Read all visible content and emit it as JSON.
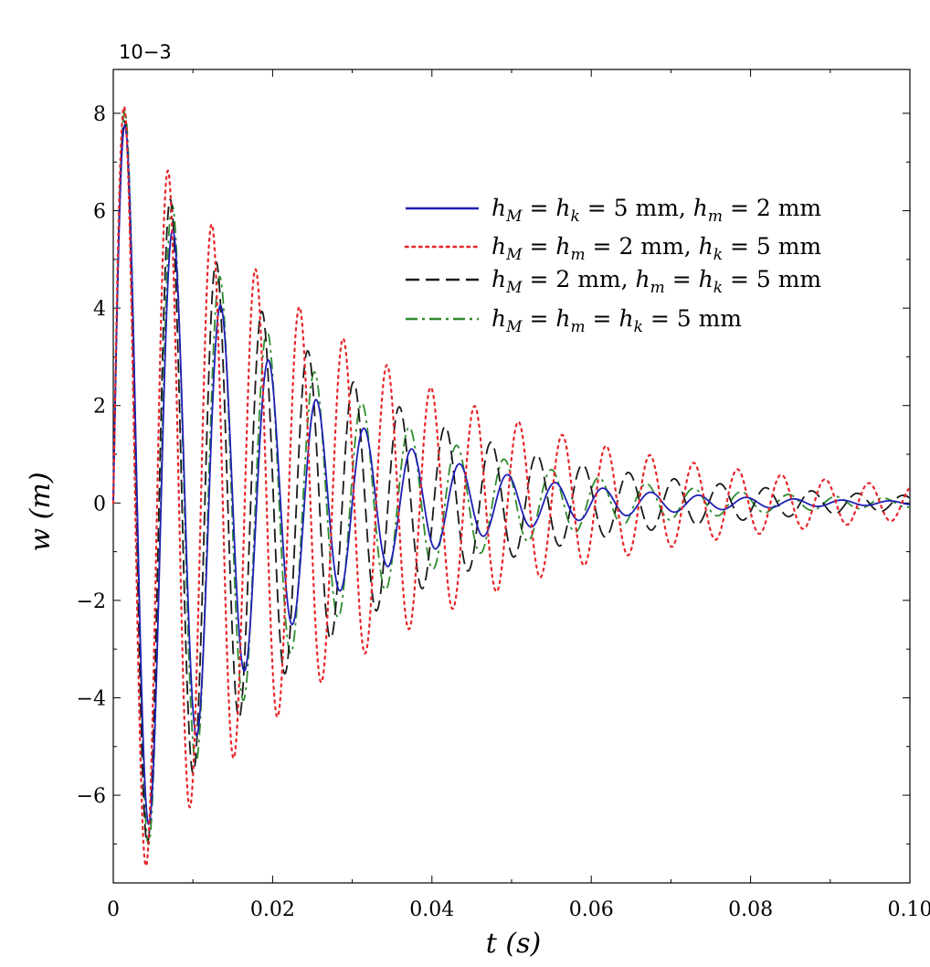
{
  "chart_data": {
    "type": "line",
    "title": "",
    "xlabel": "t (s)",
    "ylabel": "w (m)",
    "y_multiplier_label": "10−3",
    "y_scale": 0.001,
    "xlim": [
      0,
      0.1
    ],
    "ylim": [
      -7.8,
      8.9
    ],
    "x_ticks": [
      0,
      0.02,
      0.04,
      0.06,
      0.08,
      0.1
    ],
    "x_tick_labels": [
      "0",
      "0.02",
      "0.04",
      "0.06",
      "0.08",
      "0.10"
    ],
    "y_ticks": [
      -6,
      -4,
      -2,
      0,
      2,
      4,
      6,
      8
    ],
    "y_tick_labels": [
      "−6",
      "−4",
      "−2",
      "0",
      "2",
      "4",
      "6",
      "8"
    ],
    "grid": false,
    "legend_position": "top-right",
    "series": [
      {
        "name": "h_M = h_k = 5 mm, h_m = 2 mm",
        "color": "#1f1fb4",
        "dash": "solid",
        "amplitude": 8.4,
        "decay_rate": 54,
        "period": 0.006,
        "onset": 0.0,
        "x_sample": [
          0.0,
          0.0015,
          0.0045,
          0.0075,
          0.0105,
          0.0135,
          0.0165,
          0.0195,
          0.0225,
          0.0255,
          0.0285,
          0.0315,
          0.0345,
          0.0375,
          0.0405,
          0.0435,
          0.0465,
          0.0495,
          0.0525,
          0.0555,
          0.0585,
          0.0615,
          0.0645,
          0.0675,
          0.0705,
          0.0735,
          0.0765,
          0.0795,
          0.0825,
          0.0855,
          0.0885,
          0.0915,
          0.0945,
          0.0975,
          0.1
        ],
        "y_sample": [
          0.0,
          8.4,
          -7.0,
          5.6,
          -4.8,
          4.0,
          -3.4,
          2.8,
          -2.2,
          1.9,
          -1.6,
          1.3,
          -1.1,
          0.9,
          -0.75,
          0.62,
          -0.52,
          0.43,
          -0.36,
          0.3,
          -0.25,
          0.21,
          -0.17,
          0.14,
          -0.12,
          0.1,
          -0.08,
          0.07,
          -0.06,
          0.05,
          -0.04,
          0.03,
          -0.03,
          0.02,
          0.0
        ]
      },
      {
        "name": "h_M = h_m = 2 mm, h_k = 5 mm",
        "color": "#e8252a",
        "dash": "dotted",
        "amplitude": 8.5,
        "decay_rate": 32,
        "period": 0.0055,
        "onset": 0.0,
        "x_sample": [
          0.0,
          0.0014,
          0.0041,
          0.0069,
          0.0096,
          0.0124,
          0.0151,
          0.0179,
          0.0206,
          0.0234,
          0.0261,
          0.0289,
          0.0316,
          0.0344,
          0.0371,
          0.0399,
          0.0426,
          0.0454,
          0.0481,
          0.0509,
          0.0536,
          0.0564,
          0.0591,
          0.0619,
          0.0646,
          0.0674,
          0.0701,
          0.0729,
          0.0756,
          0.0784,
          0.0811,
          0.0839,
          0.0866,
          0.0894,
          0.0921,
          0.0949,
          0.0976,
          0.1
        ],
        "y_sample": [
          0.0,
          8.5,
          -7.2,
          6.4,
          -5.8,
          5.0,
          -4.4,
          4.0,
          -3.6,
          3.0,
          -2.8,
          2.3,
          -2.0,
          1.8,
          -1.6,
          1.4,
          -1.2,
          1.1,
          -0.9,
          0.8,
          -0.7,
          0.6,
          -0.55,
          0.5,
          -0.4,
          0.35,
          -0.3,
          0.28,
          -0.25,
          0.22,
          -0.18,
          0.16,
          -0.14,
          0.12,
          -0.1,
          0.08,
          -0.06,
          0.0
        ]
      },
      {
        "name": "h_M = 2 mm, h_m = h_k = 5 mm",
        "color": "#1a1a1a",
        "dash": "dashed",
        "amplitude": 8.3,
        "decay_rate": 40,
        "period": 0.00575,
        "onset": 0.0,
        "x_sample": [
          0.0,
          0.0014,
          0.0043,
          0.0072,
          0.0101,
          0.0129,
          0.0158,
          0.0187,
          0.0216,
          0.0244,
          0.0273,
          0.0302,
          0.0331,
          0.0359,
          0.0388,
          0.0417,
          0.0446,
          0.0474,
          0.0503,
          0.0532,
          0.0561,
          0.0589,
          0.0618,
          0.0647,
          0.0676,
          0.0704,
          0.0733,
          0.0762,
          0.0791,
          0.0819,
          0.0848,
          0.0877,
          0.0906,
          0.0934,
          0.0963,
          0.1
        ],
        "y_sample": [
          0.0,
          8.3,
          -7.0,
          5.9,
          -5.0,
          4.3,
          -3.4,
          3.0,
          -2.5,
          2.3,
          -2.0,
          1.7,
          -1.4,
          1.2,
          -1.0,
          0.9,
          -0.75,
          0.62,
          -0.52,
          0.45,
          -0.38,
          0.32,
          -0.27,
          0.23,
          -0.19,
          0.16,
          -0.13,
          0.11,
          -0.09,
          0.08,
          -0.06,
          0.05,
          -0.04,
          0.03,
          -0.02,
          0.0
        ]
      },
      {
        "name": "h_M = h_m = h_k = 5 mm",
        "color": "#2e8b2e",
        "dash": "dash-dot",
        "amplitude": 8.6,
        "decay_rate": 46,
        "period": 0.00595,
        "onset": 0.0,
        "x_sample": [
          0.0,
          0.0015,
          0.0045,
          0.0074,
          0.0104,
          0.0134,
          0.0164,
          0.0193,
          0.0223,
          0.0253,
          0.0283,
          0.0312,
          0.0342,
          0.0372,
          0.0402,
          0.0431,
          0.0461,
          0.0491,
          0.0521,
          0.055,
          0.058,
          0.061,
          0.064,
          0.0669,
          0.0699,
          0.0729,
          0.0759,
          0.0788,
          0.0818,
          0.0848,
          0.0878,
          0.0907,
          0.0937,
          0.0967,
          0.1
        ],
        "y_sample": [
          0.0,
          8.6,
          -7.1,
          5.7,
          -4.9,
          4.0,
          -3.3,
          2.7,
          -2.3,
          1.8,
          -1.5,
          1.25,
          -1.05,
          0.86,
          -0.72,
          0.6,
          -0.5,
          0.41,
          -0.34,
          0.28,
          -0.23,
          0.19,
          -0.16,
          0.13,
          -0.11,
          0.09,
          -0.07,
          0.06,
          -0.05,
          0.04,
          -0.03,
          0.03,
          -0.02,
          0.02,
          0.0
        ]
      }
    ]
  },
  "legend": {
    "items": [
      {
        "label_parts": [
          "h",
          "M",
          " = ",
          "h",
          "k",
          " = 5 mm, ",
          "h",
          "m",
          " = 2 mm"
        ]
      },
      {
        "label_parts": [
          "h",
          "M",
          " = ",
          "h",
          "m",
          " = 2 mm, ",
          "h",
          "k",
          " = 5 mm"
        ]
      },
      {
        "label_parts": [
          "h",
          "M",
          " = 2 mm, ",
          "h",
          "m",
          " = ",
          "h",
          "k",
          " = 5 mm"
        ]
      },
      {
        "label_parts": [
          "h",
          "M",
          " = ",
          "h",
          "m",
          " = ",
          "h",
          "k",
          " = 5 mm"
        ]
      }
    ]
  }
}
